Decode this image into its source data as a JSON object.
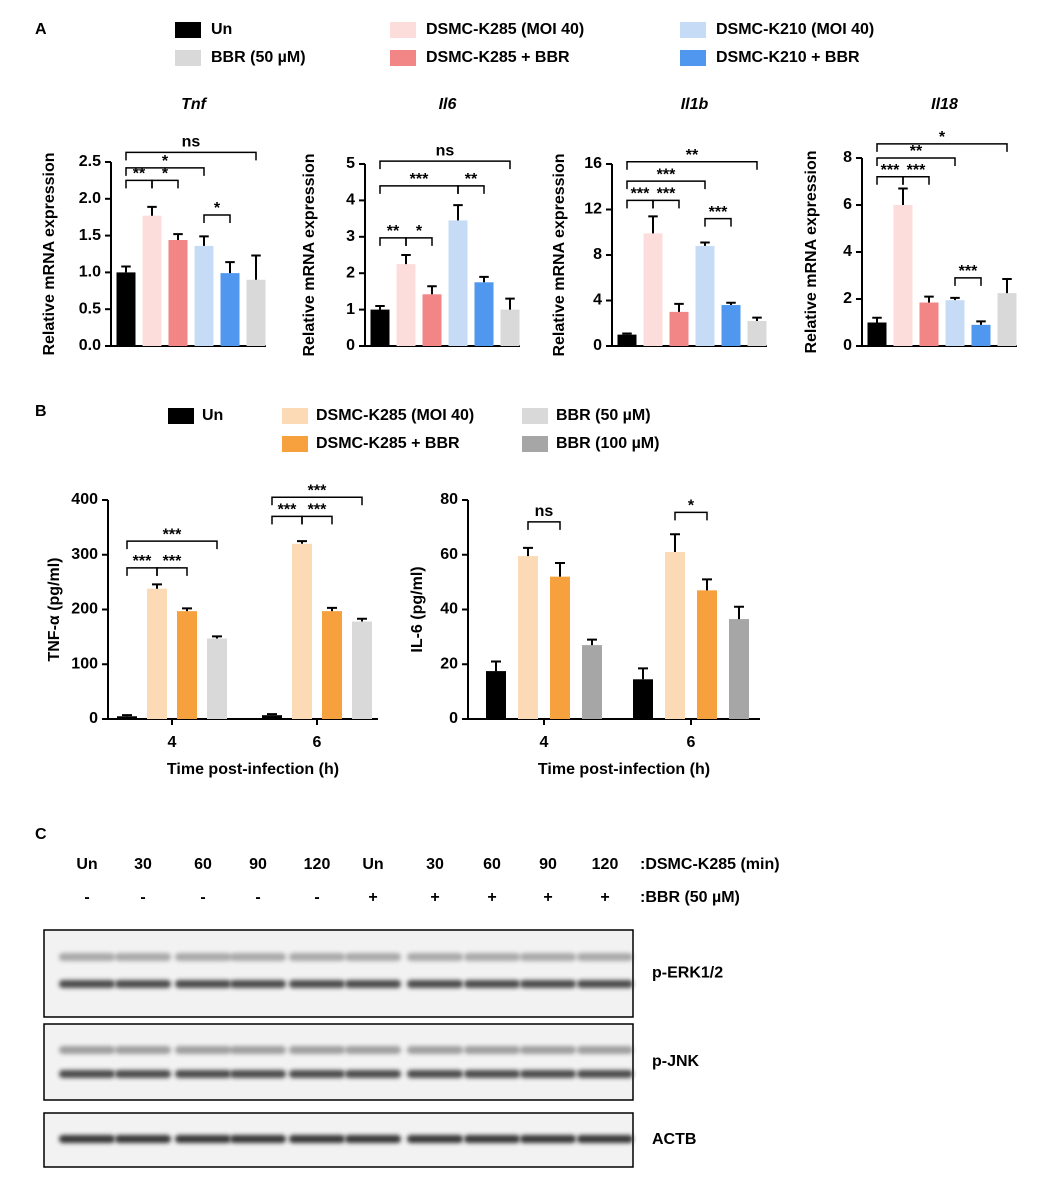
{
  "panel_labels": [
    "A",
    "B",
    "C"
  ],
  "legend_a": [
    {
      "name": "Un",
      "color": "#000000"
    },
    {
      "name": "DSMC-K285 (MOI 40)",
      "color": "#fddcdc"
    },
    {
      "name": "DSMC-K285 + BBR",
      "color": "#f28585"
    },
    {
      "name": "DSMC-K210 (MOI 40)",
      "color": "#c6dcf6"
    },
    {
      "name": "DSMC-K210 + BBR",
      "color": "#4f97ef"
    },
    {
      "name": "BBR (50 µM)",
      "color": "#d9d9d9"
    }
  ],
  "legend_b": [
    {
      "name": "Un",
      "color": "#000000"
    },
    {
      "name": "DSMC-K285 (MOI 40)",
      "color": "#fcdab6"
    },
    {
      "name": "DSMC-K285 + BBR",
      "color": "#f7a13e"
    },
    {
      "name": "BBR (50 µM)",
      "color": "#d9d9d9"
    },
    {
      "name": "BBR (100 µM)",
      "color": "#a6a6a6"
    }
  ],
  "chart_data": [
    {
      "type": "bar",
      "title": "Tnf",
      "y_label": "Relative mRNA expression",
      "values": [
        1.0,
        1.77,
        1.44,
        1.36,
        0.99,
        0.9
      ],
      "errors": [
        0.08,
        0.12,
        0.08,
        0.13,
        0.15,
        0.33
      ],
      "ylim": [
        0,
        2.5
      ],
      "yticks": [
        {
          "value": 0,
          "label": "0.0"
        },
        0.5,
        {
          "value": 1,
          "label": "1.0"
        },
        1.5,
        {
          "value": 2,
          "label": "2.0"
        },
        2.5
      ],
      "brackets": [
        {
          "label": "ns",
          "bars": [
            0,
            5
          ],
          "y": 2.63
        },
        {
          "label": "*",
          "bars": [
            0,
            3
          ],
          "y": 2.42
        },
        {
          "label": "**",
          "bars": [
            0,
            1
          ],
          "y": 2.25
        },
        {
          "label": "*",
          "bars": [
            1,
            2
          ],
          "y": 2.25
        },
        {
          "label": "*",
          "bars": [
            3,
            4
          ],
          "y": 1.78
        }
      ]
    },
    {
      "type": "bar",
      "title": "Il6",
      "y_label": "Relative mRNA expression",
      "values": [
        1.0,
        2.25,
        1.42,
        3.45,
        1.75,
        1.0
      ],
      "errors": [
        0.1,
        0.25,
        0.22,
        0.42,
        0.15,
        0.3
      ],
      "ylim": [
        0,
        5
      ],
      "yticks": [
        0,
        1,
        2,
        3,
        4,
        5
      ],
      "brackets": [
        {
          "label": "ns",
          "bars": [
            0,
            5
          ],
          "y": 5.08
        },
        {
          "label": "***",
          "bars": [
            0,
            3
          ],
          "y": 4.4
        },
        {
          "label": "**",
          "bars": [
            3,
            4
          ],
          "y": 4.4
        },
        {
          "label": "**",
          "bars": [
            0,
            1
          ],
          "y": 2.97
        },
        {
          "label": "*",
          "bars": [
            1,
            2
          ],
          "y": 2.97
        }
      ]
    },
    {
      "type": "bar",
      "title": "Il1b",
      "y_label": "Relative mRNA expression",
      "values": [
        1.0,
        9.9,
        3.0,
        8.8,
        3.6,
        2.2
      ],
      "errors": [
        0.1,
        1.5,
        0.7,
        0.3,
        0.2,
        0.3
      ],
      "ylim": [
        0,
        16
      ],
      "yticks": [
        0,
        4,
        8,
        12,
        16
      ],
      "brackets": [
        {
          "label": "**",
          "bars": [
            0,
            5
          ],
          "y": 16.2
        },
        {
          "label": "***",
          "bars": [
            0,
            3
          ],
          "y": 14.5
        },
        {
          "label": "***",
          "bars": [
            0,
            1
          ],
          "y": 12.8
        },
        {
          "label": "***",
          "bars": [
            1,
            2
          ],
          "y": 12.8
        },
        {
          "label": "***",
          "bars": [
            3,
            4
          ],
          "y": 11.2
        }
      ]
    },
    {
      "type": "bar",
      "title": "Il18",
      "y_label": "Relative mRNA expression",
      "values": [
        1.0,
        6.0,
        1.85,
        1.95,
        0.9,
        2.25
      ],
      "errors": [
        0.2,
        0.7,
        0.25,
        0.1,
        0.15,
        0.6
      ],
      "ylim": [
        0,
        8
      ],
      "yticks": [
        0,
        2,
        4,
        6,
        8
      ],
      "brackets": [
        {
          "label": "*",
          "bars": [
            0,
            5
          ],
          "y": 8.6
        },
        {
          "label": "**",
          "bars": [
            0,
            3
          ],
          "y": 8.0
        },
        {
          "label": "***",
          "bars": [
            0,
            1
          ],
          "y": 7.2
        },
        {
          "label": "***",
          "bars": [
            1,
            2
          ],
          "y": 7.2
        },
        {
          "label": "***",
          "bars": [
            3,
            4
          ],
          "y": 2.9
        }
      ]
    },
    {
      "type": "grouped_bar",
      "y_label": "TNF-α (pg/ml)",
      "x_label": "Time post-infection (h)",
      "categories": [
        "4",
        "6"
      ],
      "series": [
        {
          "color": "#000000",
          "values": [
            5,
            7
          ],
          "errors": [
            2,
            2
          ]
        },
        {
          "color": "#fcdab6",
          "values": [
            238,
            320
          ],
          "errors": [
            8,
            5
          ]
        },
        {
          "color": "#f7a13e",
          "values": [
            197,
            197
          ],
          "errors": [
            5,
            6
          ]
        },
        {
          "color": "#d9d9d9",
          "values": [
            147,
            178
          ],
          "errors": [
            4,
            5
          ]
        }
      ],
      "ylim": [
        0,
        400
      ],
      "yticks": [
        0,
        100,
        200,
        300,
        400
      ],
      "brackets": [
        {
          "label": "***",
          "bars": [
            0,
            3
          ],
          "y": 325
        },
        {
          "label": "***",
          "bars": [
            0,
            1
          ],
          "y": 276
        },
        {
          "label": "***",
          "bars": [
            1,
            2
          ],
          "y": 276
        },
        {
          "label": "***",
          "bars": [
            4,
            7
          ],
          "y": 405
        },
        {
          "label": "***",
          "bars": [
            4,
            5
          ],
          "y": 370
        },
        {
          "label": "***",
          "bars": [
            5,
            6
          ],
          "y": 370
        }
      ]
    },
    {
      "type": "grouped_bar",
      "y_label": "IL-6 (pg/ml)",
      "x_label": "Time post-infection (h)",
      "categories": [
        "4",
        "6"
      ],
      "series": [
        {
          "color": "#000000",
          "values": [
            17.5,
            14.5
          ],
          "errors": [
            3.5,
            4
          ]
        },
        {
          "color": "#fcdab6",
          "values": [
            59.5,
            61
          ],
          "errors": [
            3,
            6.5
          ]
        },
        {
          "color": "#f7a13e",
          "values": [
            52,
            47
          ],
          "errors": [
            5,
            4
          ]
        },
        {
          "color": "#a6a6a6",
          "values": [
            27,
            36.5
          ],
          "errors": [
            2,
            4.5
          ]
        }
      ],
      "ylim": [
        0,
        80
      ],
      "yticks": [
        0,
        20,
        40,
        60,
        80
      ],
      "brackets": [
        {
          "label": "ns",
          "bars": [
            1,
            2
          ],
          "y": 72
        },
        {
          "label": "*",
          "bars": [
            5,
            6
          ],
          "y": 75.5
        }
      ]
    }
  ],
  "blot": {
    "lanes": [
      "Un",
      "30",
      "60",
      "90",
      "120",
      "Un",
      "30",
      "60",
      "90",
      "120"
    ],
    "lanes_label": ":DSMC-K285 (min)",
    "treatment": [
      "-",
      "-",
      "-",
      "-",
      "-",
      "+",
      "+",
      "+",
      "+",
      "+"
    ],
    "treatment_label": ":BBR (50 µM)",
    "bands": [
      "p-ERK1/2",
      "p-JNK",
      "ACTB"
    ]
  }
}
